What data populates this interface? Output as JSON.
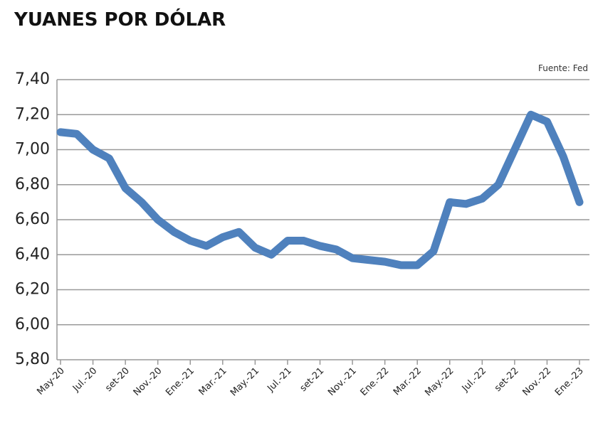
{
  "chart_data": {
    "type": "line",
    "title": "YUANES POR DÓLAR",
    "source": "Fuente: Fed",
    "categories": [
      "May-20",
      null,
      "Jul.-20",
      null,
      "set-20",
      null,
      "Nov.-20",
      null,
      "Ene.-21",
      null,
      "Mar.-21",
      null,
      "May.-21",
      null,
      "Jul.-21",
      null,
      "set-21",
      null,
      "Nov.-21",
      null,
      "Ene.-22",
      null,
      "Mar.-22",
      null,
      "May.-22",
      null,
      "Jul.-22",
      null,
      "set-22",
      null,
      "Nov.-22",
      null,
      "Ene.-23"
    ],
    "series": [
      {
        "color": "#4f81bd",
        "values": [
          7.1,
          7.09,
          7.0,
          6.95,
          6.78,
          6.7,
          6.6,
          6.53,
          6.48,
          6.45,
          6.5,
          6.53,
          6.44,
          6.4,
          6.48,
          6.48,
          6.45,
          6.43,
          6.38,
          6.37,
          6.36,
          6.34,
          6.34,
          6.42,
          6.7,
          6.69,
          6.72,
          6.8,
          7.0,
          7.2,
          7.16,
          6.96,
          6.7
        ]
      }
    ],
    "ylim": [
      5.8,
      7.4
    ],
    "yticks": [
      {
        "value": 5.8,
        "label": "5,80"
      },
      {
        "value": 6.0,
        "label": "6,00"
      },
      {
        "value": 6.2,
        "label": "6,20"
      },
      {
        "value": 6.4,
        "label": "6,40"
      },
      {
        "value": 6.6,
        "label": "6,60"
      },
      {
        "value": 6.8,
        "label": "6,80"
      },
      {
        "value": 7.0,
        "label": "7,00"
      },
      {
        "value": 7.2,
        "label": "7,20"
      },
      {
        "value": 7.4,
        "label": "7,40"
      }
    ],
    "grid": true
  }
}
